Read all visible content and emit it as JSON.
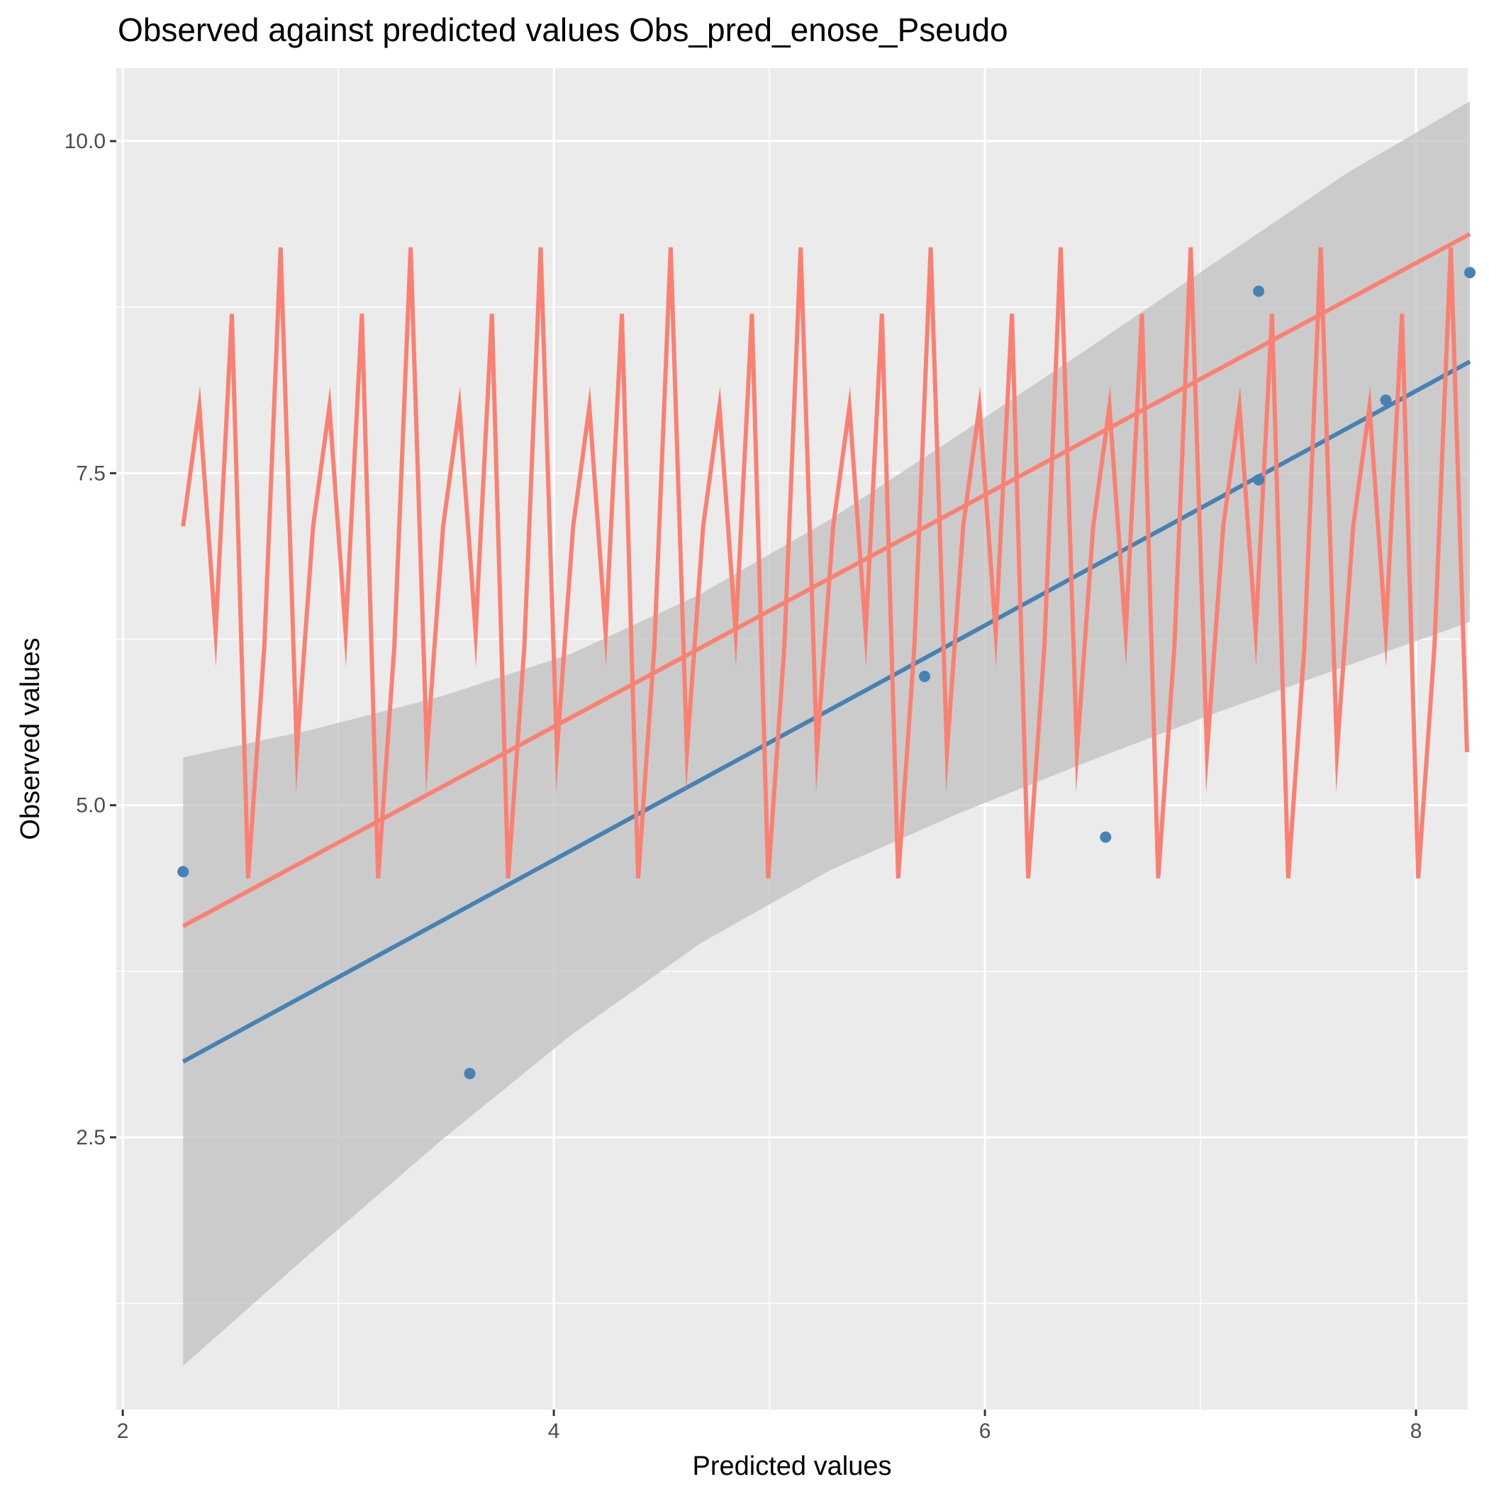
{
  "chart_data": {
    "type": "scatter",
    "title": "Observed against predicted values Obs_pred_enose_Pseudo",
    "xlabel": "Predicted values",
    "ylabel": "Observed values",
    "xlim": [
      1.97,
      8.24
    ],
    "ylim": [
      0.45,
      10.55
    ],
    "x_ticks": [
      2,
      4,
      6,
      8
    ],
    "x_tick_labels": [
      "2",
      "4",
      "6",
      "8"
    ],
    "y_ticks": [
      2.5,
      5.0,
      7.5,
      10.0
    ],
    "y_tick_labels": [
      "2.5",
      "5.0",
      "7.5",
      "10.0"
    ],
    "grid": true,
    "colors": {
      "panel": "#EBEBEB",
      "grid": "#FFFFFF",
      "points": "#4682B4",
      "fit_line": "#4682B4",
      "confidence_band": "#BEBEBE",
      "reference_line": "#FA8072",
      "zigzag_line": "#FA8072"
    },
    "points": [
      {
        "x": 2.28,
        "y": 4.5
      },
      {
        "x": 3.61,
        "y": 2.98
      },
      {
        "x": 5.72,
        "y": 5.97
      },
      {
        "x": 6.56,
        "y": 4.76
      },
      {
        "x": 7.27,
        "y": 8.87
      },
      {
        "x": 7.27,
        "y": 7.45
      },
      {
        "x": 7.86,
        "y": 8.05
      },
      {
        "x": 8.25,
        "y": 9.01
      }
    ],
    "fit_line": {
      "x": [
        2.28,
        8.25
      ],
      "y": [
        3.07,
        8.34
      ]
    },
    "confidence_band": {
      "x": [
        2.28,
        2.88,
        3.48,
        4.08,
        4.68,
        5.28,
        5.88,
        6.48,
        7.08,
        7.68,
        8.25
      ],
      "lower": [
        0.78,
        1.64,
        2.48,
        3.27,
        3.96,
        4.51,
        4.94,
        5.33,
        5.7,
        6.05,
        6.38
      ],
      "upper": [
        5.36,
        5.57,
        5.82,
        6.14,
        6.59,
        7.15,
        7.79,
        8.44,
        9.1,
        9.76,
        10.3
      ]
    },
    "reference_line": {
      "x": [
        2.28,
        8.25
      ],
      "y": [
        4.09,
        9.3
      ]
    },
    "zigzag_line": {
      "x_start": 2.28,
      "x_step": 0.0754,
      "y_pattern": [
        7.1,
        8.0,
        6.3,
        8.7,
        4.45,
        6.2,
        9.2,
        5.4
      ]
    }
  }
}
